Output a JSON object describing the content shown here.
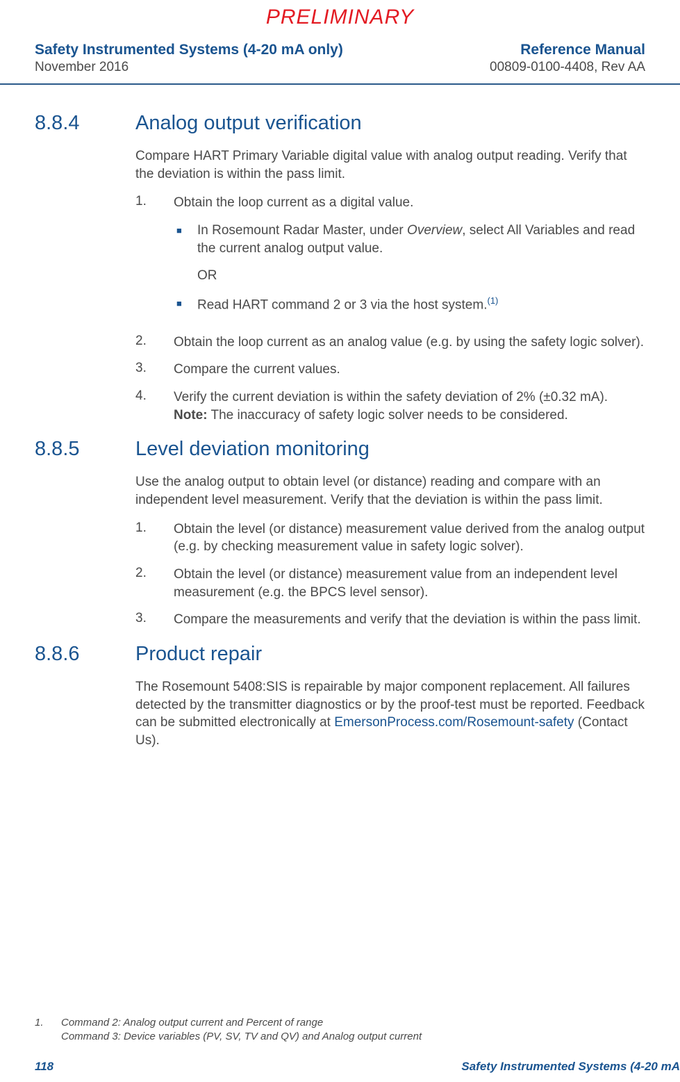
{
  "preliminary": "PRELIMINARY",
  "header": {
    "left_title": "Safety Instrumented Systems (4-20 mA only)",
    "left_sub": "November 2016",
    "right_title": "Reference Manual",
    "right_sub": "00809-0100-4408, Rev AA"
  },
  "sections": {
    "s884": {
      "number": "8.8.4",
      "title": "Analog output verification",
      "intro": "Compare HART Primary Variable digital value with analog output reading. Verify that the deviation is within the pass limit.",
      "step1": "Obtain the loop current as a digital value.",
      "bullet1a_pre": "In Rosemount Radar Master, under ",
      "bullet1a_italic": "Overview",
      "bullet1a_post": ", select All Variables and read the current analog output value.",
      "or": "OR",
      "bullet1b": "Read HART command 2 or 3 via the host system.",
      "sup": "(1)",
      "step2": "Obtain the loop current as an analog value (e.g. by using the safety logic solver).",
      "step3": "Compare the current values.",
      "step4a": "Verify the current deviation is within the safety deviation of 2% (±0.32 mA).",
      "step4_note_label": "Note:",
      "step4_note": " The inaccuracy of safety logic solver needs to be considered."
    },
    "s885": {
      "number": "8.8.5",
      "title": "Level deviation monitoring",
      "intro": "Use the analog output to obtain level (or distance) reading and compare with an independent level measurement. Verify that the deviation is within the pass limit.",
      "step1": "Obtain the level (or distance) measurement value derived from the analog output (e.g. by checking measurement value in safety logic solver).",
      "step2": "Obtain the level (or distance) measurement value from an independent level measurement (e.g. the BPCS level sensor).",
      "step3": "Compare the measurements and verify that the deviation is within the pass limit."
    },
    "s886": {
      "number": "8.8.6",
      "title": "Product repair",
      "para_pre": "The Rosemount 5408:SIS is repairable by major component replacement. All failures detected by the transmitter diagnostics or by the proof-test must be reported. Feedback can be submitted electronically at ",
      "para_link": "EmersonProcess.com/Rosemount-safety",
      "para_post": " (Contact Us)."
    }
  },
  "footnote": {
    "num": "1.",
    "line1": "Command 2: Analog output current and Percent of range",
    "line2": "Command 3: Device variables (PV, SV, TV and QV) and Analog output current"
  },
  "footer": {
    "page": "118",
    "text": "Safety Instrumented Systems (4-20 mA"
  },
  "numbers": {
    "n1": "1.",
    "n2": "2.",
    "n3": "3.",
    "n4": "4."
  },
  "bullet": "■"
}
